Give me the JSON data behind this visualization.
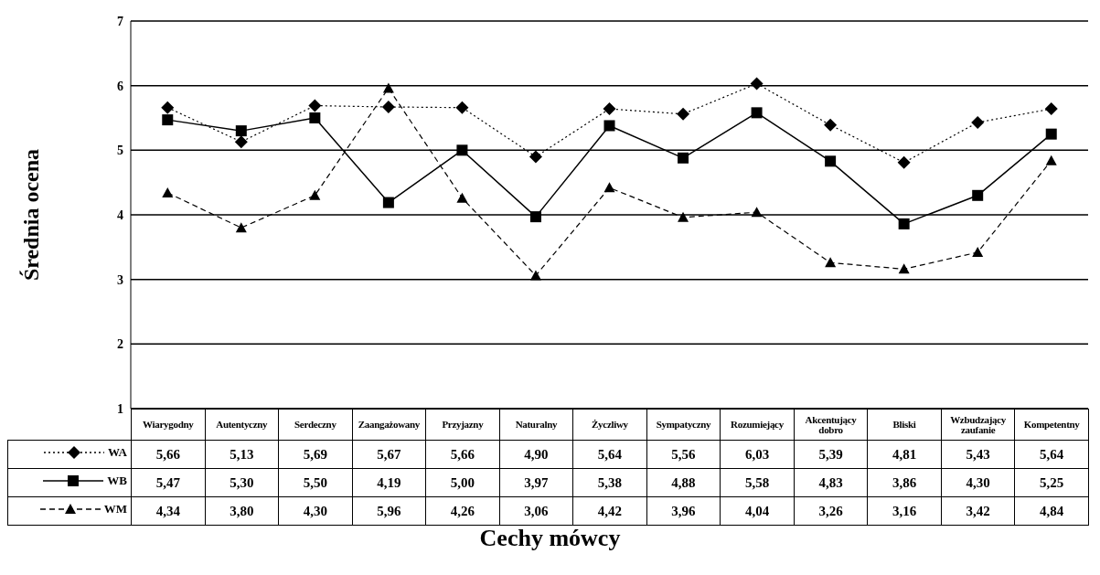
{
  "chart_data": {
    "type": "line",
    "xlabel": "Cechy mówcy",
    "ylabel": "Średnia ocena",
    "categories": [
      "Wiarygodny",
      "Autentyczny",
      "Serdeczny",
      "Zaangażowany",
      "Przyjazny",
      "Naturalny",
      "Życzliwy",
      "Sympatyczny",
      "Rozumiejący",
      "Akcentujący dobro",
      "Bliski",
      "Wzbudzający zaufanie",
      "Kompetentny"
    ],
    "series": [
      {
        "name": "WA",
        "color": "#000000",
        "marker": "diamond",
        "line_style": "dotted",
        "values": [
          5.66,
          5.13,
          5.69,
          5.67,
          5.66,
          4.9,
          5.64,
          5.56,
          6.03,
          5.39,
          4.81,
          5.43,
          5.64
        ],
        "value_labels": [
          "5,66",
          "5,13",
          "5,69",
          "5,67",
          "5,66",
          "4,90",
          "5,64",
          "5,56",
          "6,03",
          "5,39",
          "4,81",
          "5,43",
          "5,64"
        ]
      },
      {
        "name": "WB",
        "color": "#000000",
        "marker": "square",
        "line_style": "solid",
        "values": [
          5.47,
          5.3,
          5.5,
          4.19,
          5.0,
          3.97,
          5.38,
          4.88,
          5.58,
          4.83,
          3.86,
          4.3,
          5.25
        ],
        "value_labels": [
          "5,47",
          "5,30",
          "5,50",
          "4,19",
          "5,00",
          "3,97",
          "5,38",
          "4,88",
          "5,58",
          "4,83",
          "3,86",
          "4,30",
          "5,25"
        ]
      },
      {
        "name": "WM",
        "color": "#000000",
        "marker": "triangle",
        "line_style": "dashed",
        "values": [
          4.34,
          3.8,
          4.3,
          5.96,
          4.26,
          3.06,
          4.42,
          3.96,
          4.04,
          3.26,
          3.16,
          3.42,
          4.84
        ],
        "value_labels": [
          "4,34",
          "3,80",
          "4,30",
          "5,96",
          "4,26",
          "3,06",
          "4,42",
          "3,96",
          "4,04",
          "3,26",
          "3,16",
          "3,42",
          "4,84"
        ]
      }
    ],
    "ylim": [
      1,
      7
    ],
    "yticks": [
      1,
      2,
      3,
      4,
      5,
      6,
      7
    ],
    "grid": "y",
    "legend": "bottom left"
  }
}
